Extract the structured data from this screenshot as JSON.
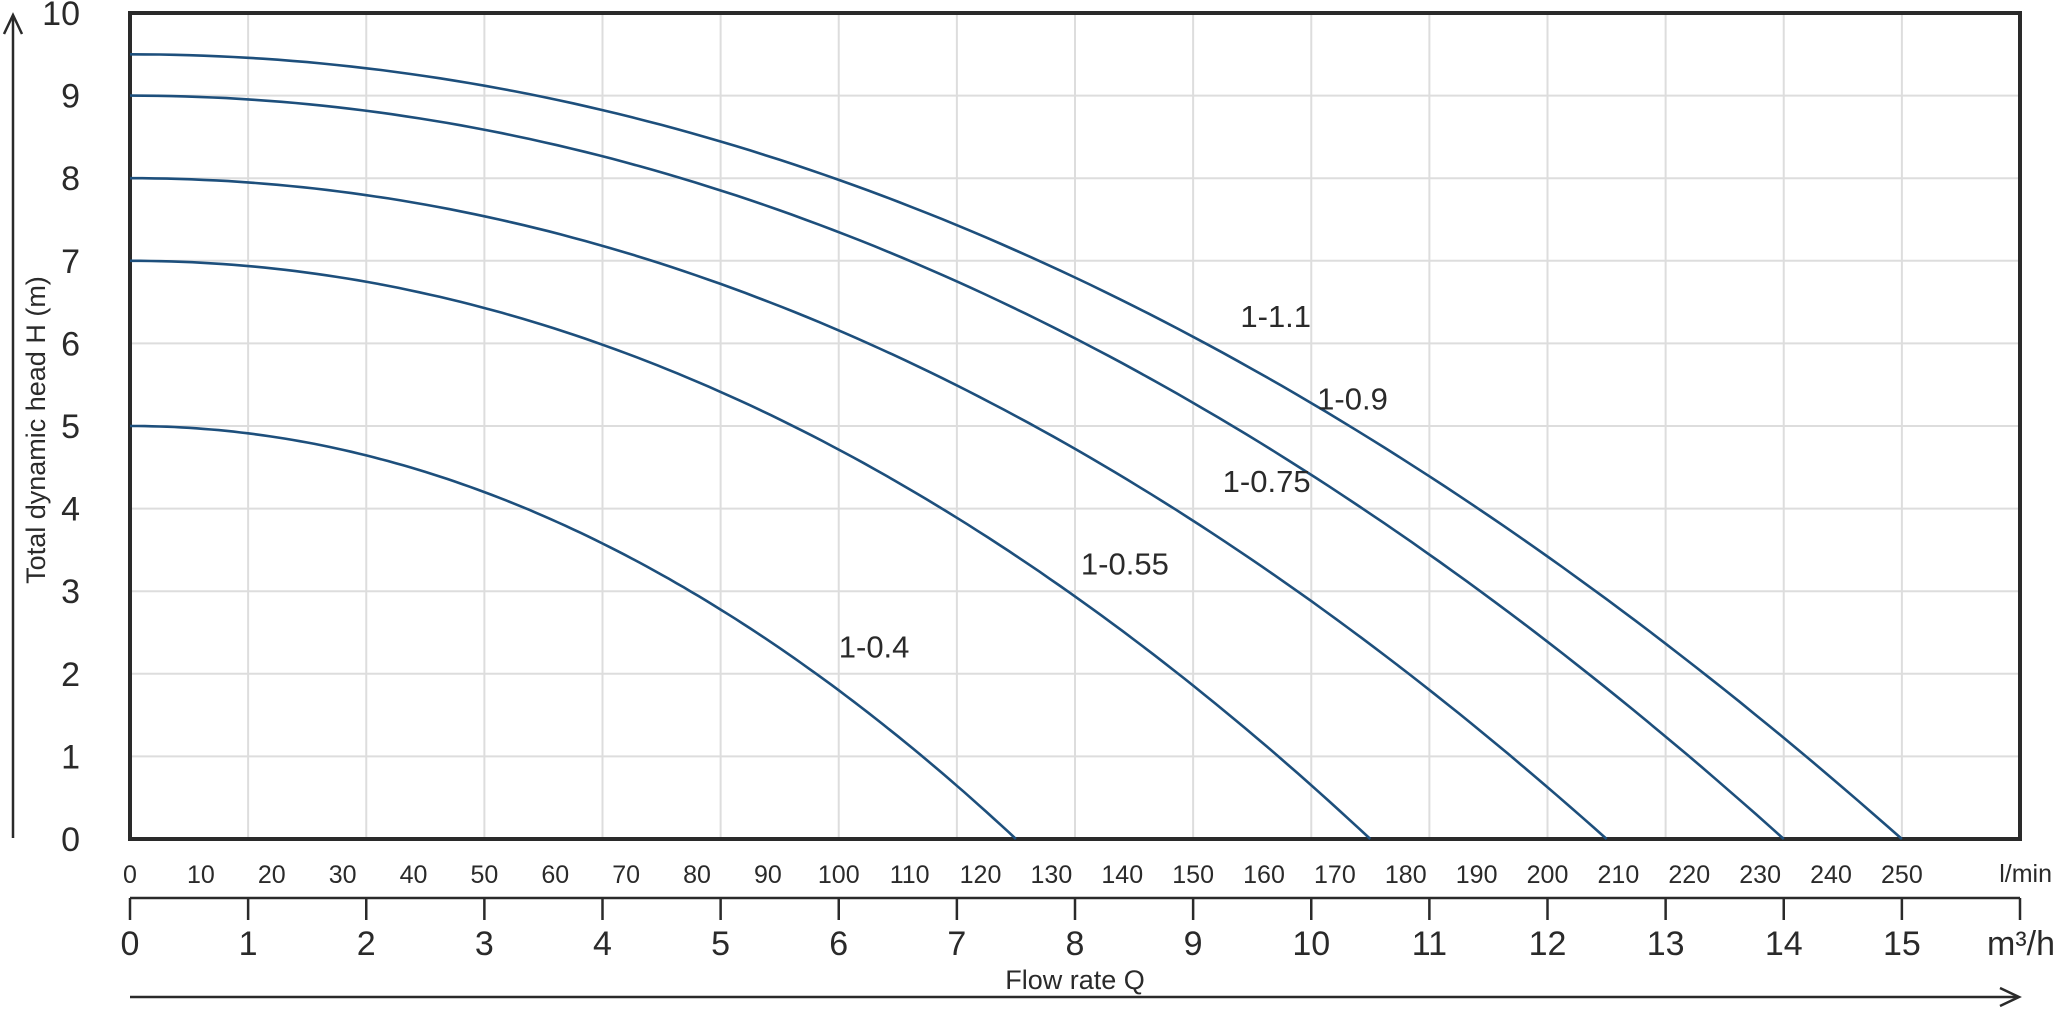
{
  "chart_data": {
    "type": "line",
    "ylabel": "Total dynamic head H (m)",
    "xlabel": "Flow rate Q",
    "ylim": [
      0,
      10
    ],
    "xlim_m3h": [
      0,
      16
    ],
    "yticks": [
      "0",
      "1",
      "2",
      "3",
      "4",
      "5",
      "6",
      "7",
      "8",
      "9",
      "10"
    ],
    "xticks_lmin": [
      "0",
      "10",
      "20",
      "30",
      "40",
      "50",
      "60",
      "70",
      "80",
      "90",
      "100",
      "110",
      "120",
      "130",
      "140",
      "150",
      "160",
      "170",
      "180",
      "190",
      "200",
      "210",
      "220",
      "230",
      "240",
      "250"
    ],
    "xticks_m3h": [
      "0",
      "1",
      "2",
      "3",
      "4",
      "5",
      "6",
      "7",
      "8",
      "9",
      "10",
      "11",
      "12",
      "13",
      "14",
      "15"
    ],
    "x_unit_lmin": "l/min",
    "x_unit_m3h": "m³/h",
    "grid": true,
    "series": [
      {
        "name": "1-0.4",
        "h0": 5,
        "qmax": 7.5,
        "label_at": [
          6,
          2.2
        ]
      },
      {
        "name": "1-0.55",
        "h0": 7,
        "qmax": 10.5,
        "label_at": [
          8.05,
          3.2
        ]
      },
      {
        "name": "1-0.75",
        "h0": 8,
        "qmax": 12.5,
        "label_at": [
          9.25,
          4.2
        ]
      },
      {
        "name": "1-0.9",
        "h0": 9,
        "qmax": 14,
        "label_at": [
          10.05,
          5.2
        ]
      },
      {
        "name": "1-1.1",
        "h0": 9.5,
        "qmax": 15,
        "label_at": [
          9.4,
          6.2
        ]
      }
    ],
    "colors": {
      "curve": "#1d4f7c",
      "grid": "#dddddd",
      "frame": "#2a2a2a"
    }
  }
}
